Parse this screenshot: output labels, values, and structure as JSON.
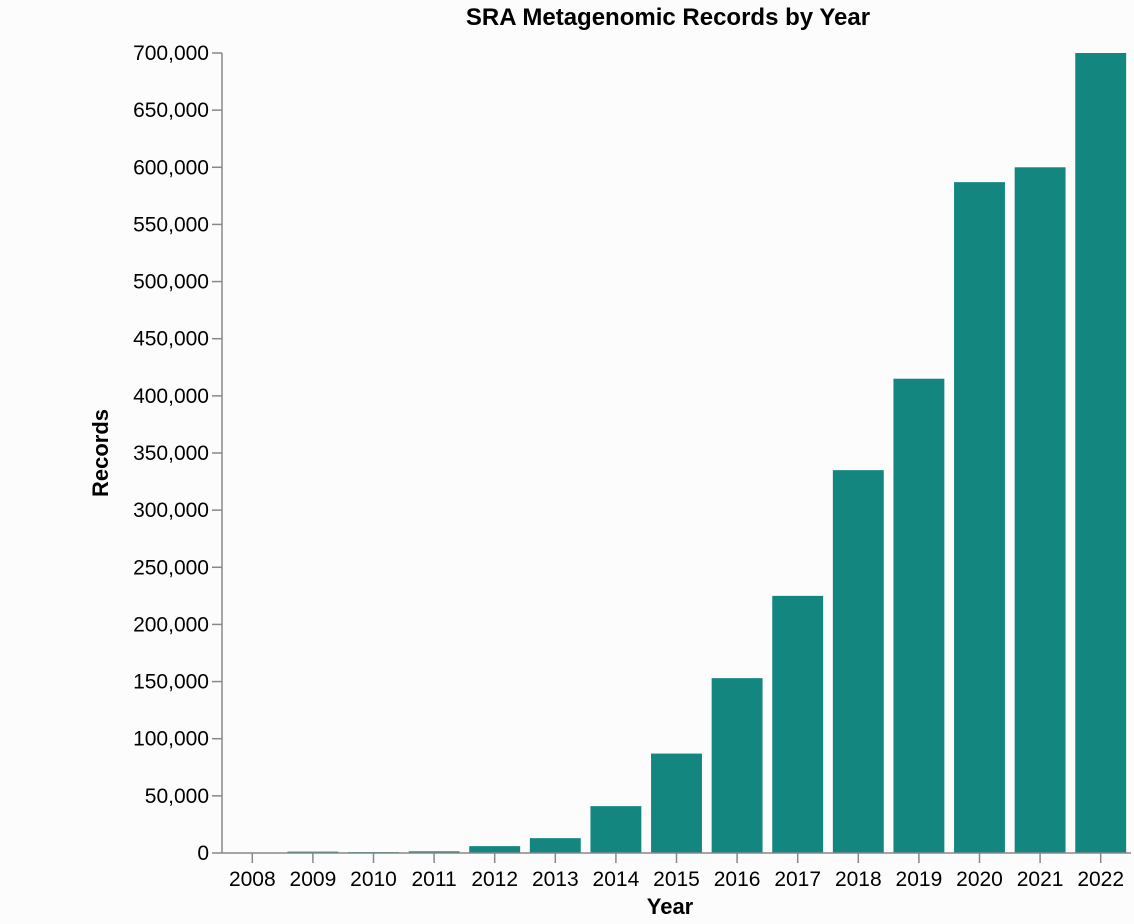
{
  "chart_data": {
    "type": "bar",
    "title": "SRA Metagenomic Records by Year",
    "xlabel": "Year",
    "ylabel": "Records",
    "categories": [
      "2008",
      "2009",
      "2010",
      "2011",
      "2012",
      "2013",
      "2014",
      "2015",
      "2016",
      "2017",
      "2018",
      "2019",
      "2020",
      "2021",
      "2022"
    ],
    "values": [
      300,
      1200,
      800,
      1500,
      6000,
      13000,
      41000,
      87000,
      153000,
      225000,
      335000,
      415000,
      587000,
      600000,
      700000
    ],
    "ylim": [
      0,
      700000
    ],
    "yticks": [
      0,
      50000,
      100000,
      150000,
      200000,
      250000,
      300000,
      350000,
      400000,
      450000,
      500000,
      550000,
      600000,
      650000,
      700000
    ],
    "ytick_labels": [
      "0",
      "50,000",
      "100,000",
      "150,000",
      "200,000",
      "250,000",
      "300,000",
      "350,000",
      "400,000",
      "450,000",
      "500,000",
      "550,000",
      "600,000",
      "650,000",
      "700,000"
    ],
    "bar_color": "#138680",
    "grid": false,
    "legend": "none"
  }
}
